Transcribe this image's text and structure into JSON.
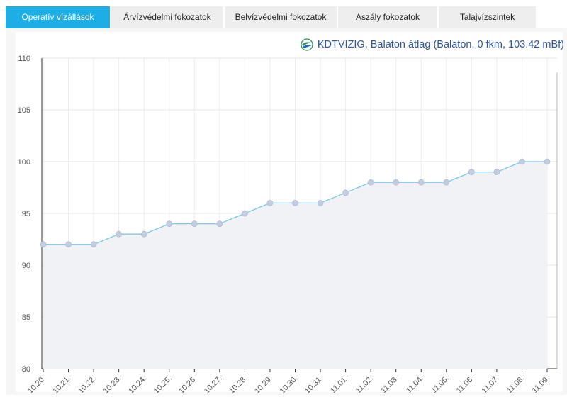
{
  "tabs": [
    {
      "label": "Operatív vízállások",
      "active": true
    },
    {
      "label": "Árvízvédelmi fokozatok",
      "active": false
    },
    {
      "label": "Belvízvédelmi fokozatok",
      "active": false
    },
    {
      "label": "Aszály fokozatok",
      "active": false
    },
    {
      "label": "Talajvízszintek",
      "active": false
    }
  ],
  "colors": {
    "tab_active": "#1daee6",
    "series_line": "#7cc8e6",
    "series_area": "#f1f2f6",
    "title_text": "#2a55a4"
  },
  "logo_icon": "kdtvizig-logo-icon",
  "chart_data": {
    "type": "line",
    "title": "KDTVIZIG, Balaton átlag (Balaton, 0 fkm, 103.42 mBf)",
    "xlabel": "",
    "ylabel": "",
    "ylim": [
      80,
      110
    ],
    "yticks": [
      80,
      85,
      90,
      95,
      100,
      105,
      110
    ],
    "grid": true,
    "area_fill": true,
    "categories": [
      "10.20.",
      "10.21.",
      "10.22.",
      "10.23.",
      "10.24.",
      "10.25.",
      "10.26.",
      "10.27.",
      "10.28.",
      "10.29.",
      "10.30.",
      "10.31.",
      "11.01.",
      "11.02.",
      "11.03.",
      "11.04.",
      "11.05.",
      "11.06.",
      "11.07.",
      "11.08.",
      "11.09."
    ],
    "series": [
      {
        "values": [
          92,
          92,
          92,
          93,
          93,
          94,
          94,
          94,
          95,
          96,
          96,
          96,
          97,
          98,
          98,
          98,
          98,
          99,
          99,
          100,
          100
        ]
      }
    ]
  }
}
